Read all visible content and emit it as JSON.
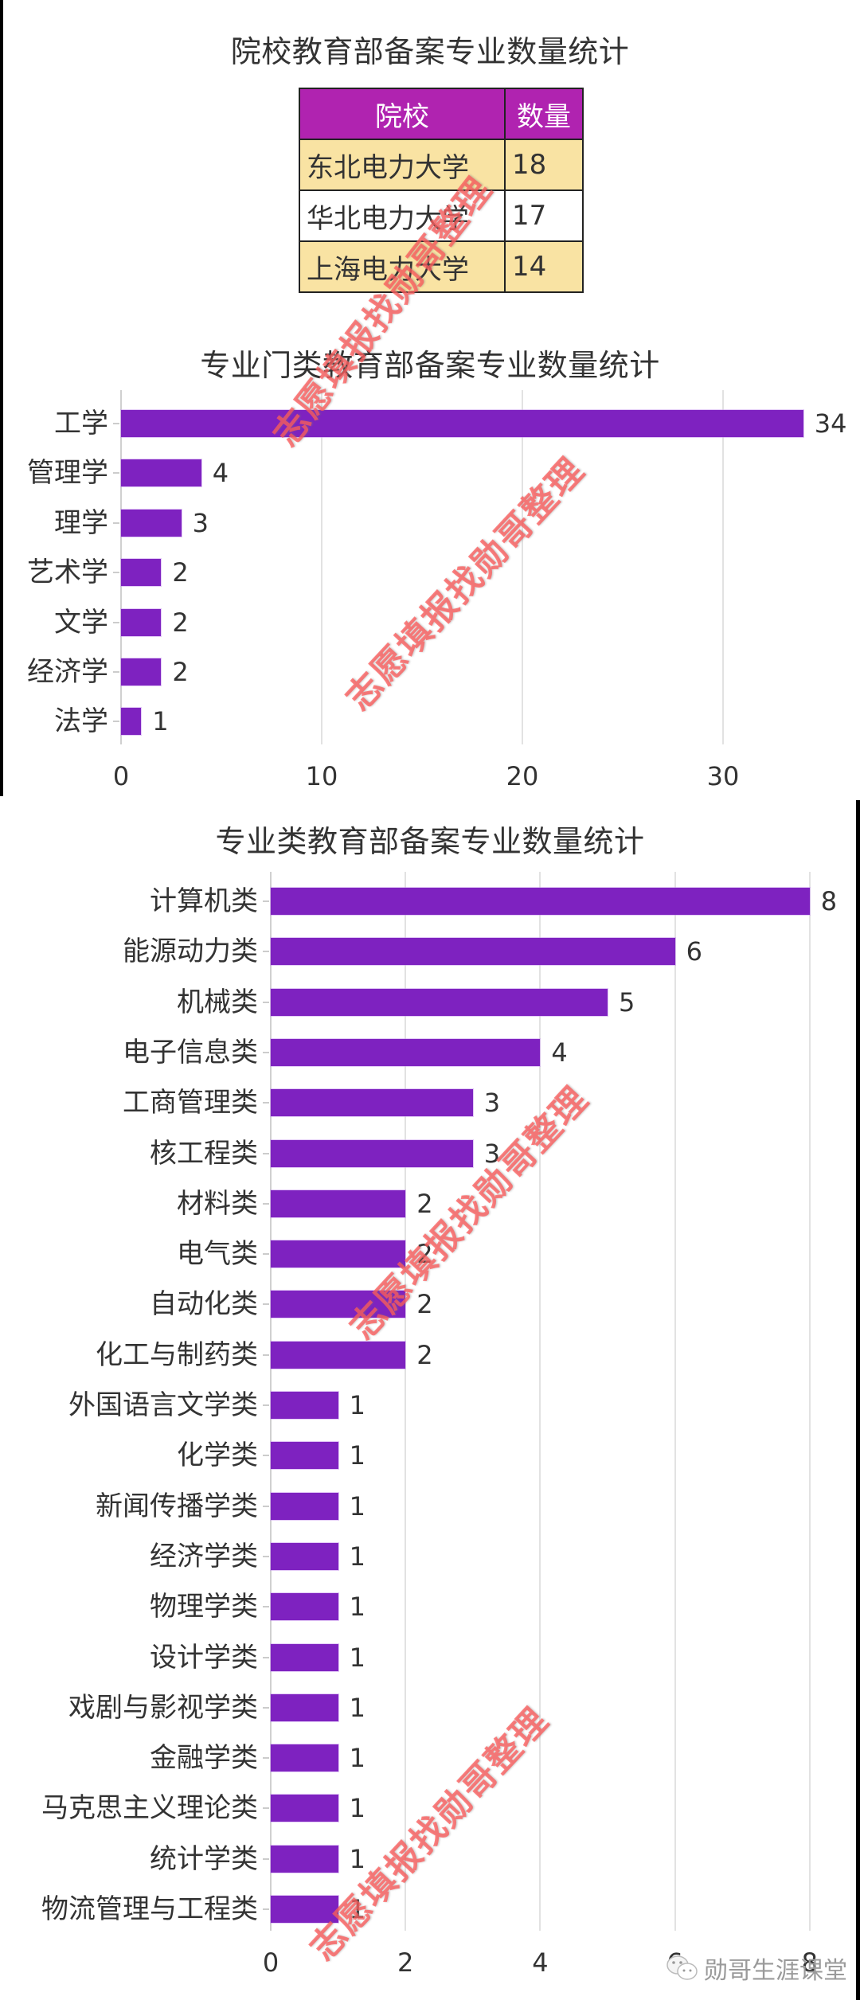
{
  "table_section": {
    "title": "院校教育部备案专业数量统计",
    "headers": [
      "院校",
      "数量"
    ],
    "rows": [
      {
        "name": "东北电力大学",
        "count": "18"
      },
      {
        "name": "华北电力大学",
        "count": "17"
      },
      {
        "name": "上海电力大学",
        "count": "14"
      }
    ],
    "colors": {
      "header_bg": "#B023B0",
      "row_shade": "#F9E3A3"
    }
  },
  "chart1": {
    "title": "专业门类教育部备案专业数量统计",
    "categories": [
      "工学",
      "管理学",
      "理学",
      "艺术学",
      "文学",
      "经济学",
      "法学"
    ],
    "values": [
      "34",
      "4",
      "3",
      "2",
      "2",
      "2",
      "1"
    ],
    "x_ticks": [
      "0",
      "10",
      "20",
      "30"
    ]
  },
  "chart2": {
    "title": "专业类教育部备案专业数量统计",
    "categories": [
      "计算机类",
      "能源动力类",
      "机械类",
      "电子信息类",
      "工商管理类",
      "核工程类",
      "材料类",
      "电气类",
      "自动化类",
      "化工与制药类",
      "外国语言文学类",
      "化学类",
      "新闻传播学类",
      "经济学类",
      "物理学类",
      "设计学类",
      "戏剧与影视学类",
      "金融学类",
      "马克思主义理论类",
      "统计学类",
      "物流管理与工程类"
    ],
    "values": [
      "8",
      "6",
      "5",
      "4",
      "3",
      "3",
      "2",
      "2",
      "2",
      "2",
      "1",
      "1",
      "1",
      "1",
      "1",
      "1",
      "1",
      "1",
      "1",
      "1",
      "1"
    ],
    "x_ticks": [
      "0",
      "2",
      "4",
      "6",
      "8"
    ]
  },
  "watermark": {
    "text": "志愿填报找勋哥整理"
  },
  "footer": {
    "wechat_account": "勋哥生涯课堂"
  },
  "chart_data": [
    {
      "type": "table",
      "title": "院校教育部备案专业数量统计",
      "columns": [
        "院校",
        "数量"
      ],
      "rows": [
        [
          "东北电力大学",
          18
        ],
        [
          "华北电力大学",
          17
        ],
        [
          "上海电力大学",
          14
        ]
      ]
    },
    {
      "type": "bar",
      "orientation": "horizontal",
      "title": "专业门类教育部备案专业数量统计",
      "categories": [
        "工学",
        "管理学",
        "理学",
        "艺术学",
        "文学",
        "经济学",
        "法学"
      ],
      "values": [
        34,
        4,
        3,
        2,
        2,
        2,
        1
      ],
      "xlabel": "",
      "ylabel": "",
      "xlim": [
        0,
        35
      ],
      "x_ticks": [
        0,
        10,
        20,
        30
      ],
      "grid": true,
      "bar_color": "#7E22C0",
      "data_labels": true
    },
    {
      "type": "bar",
      "orientation": "horizontal",
      "title": "专业类教育部备案专业数量统计",
      "categories": [
        "计算机类",
        "能源动力类",
        "机械类",
        "电子信息类",
        "工商管理类",
        "核工程类",
        "材料类",
        "电气类",
        "自动化类",
        "化工与制药类",
        "外国语言文学类",
        "化学类",
        "新闻传播学类",
        "经济学类",
        "物理学类",
        "设计学类",
        "戏剧与影视学类",
        "金融学类",
        "马克思主义理论类",
        "统计学类",
        "物流管理与工程类"
      ],
      "values": [
        8,
        6,
        5,
        4,
        3,
        3,
        2,
        2,
        2,
        2,
        1,
        1,
        1,
        1,
        1,
        1,
        1,
        1,
        1,
        1,
        1
      ],
      "xlabel": "",
      "ylabel": "",
      "xlim": [
        0,
        8
      ],
      "x_ticks": [
        0,
        2,
        4,
        6,
        8
      ],
      "grid": true,
      "bar_color": "#7E22C0",
      "data_labels": true
    }
  ]
}
